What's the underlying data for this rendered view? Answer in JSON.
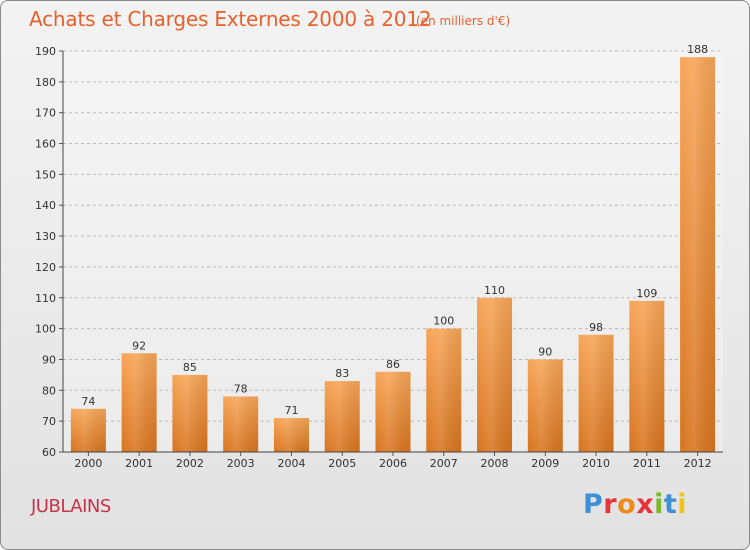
{
  "title": "Achats et Charges Externes 2000 à 2012",
  "subtitle": "(en milliers d'€)",
  "place": "JUBLAINS",
  "logo": {
    "letters": [
      "P",
      "r",
      "o",
      "x",
      "i",
      "t",
      "i"
    ],
    "colors": [
      "#3d8fd6",
      "#e8333a",
      "#f08a1c",
      "#e8333a",
      "#7ab929",
      "#3d8fd6",
      "#f0c419"
    ]
  },
  "chart_data": {
    "type": "bar",
    "categories": [
      "2000",
      "2001",
      "2002",
      "2003",
      "2004",
      "2005",
      "2006",
      "2007",
      "2008",
      "2009",
      "2010",
      "2011",
      "2012"
    ],
    "values": [
      74,
      92,
      85,
      78,
      71,
      83,
      86,
      100,
      110,
      90,
      98,
      109,
      188
    ],
    "ylim": [
      60,
      190
    ],
    "yticks": [
      60,
      70,
      80,
      90,
      100,
      110,
      120,
      130,
      140,
      150,
      160,
      170,
      180,
      190
    ],
    "grid": "horizontal dashed",
    "bar_color_top": "#f7a557",
    "bar_color_bottom": "#d8741f"
  }
}
